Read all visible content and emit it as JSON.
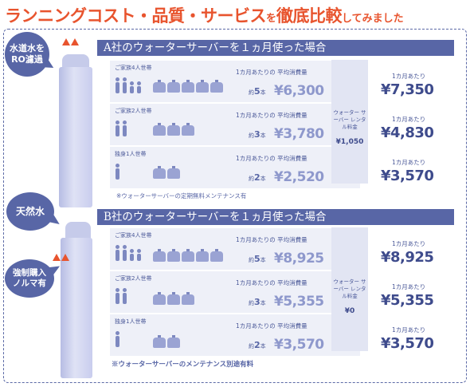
{
  "title": {
    "main": "ランニングコスト・品質・サービス",
    "particle": "を",
    "main2": "徹底比較",
    "tail": "してみました"
  },
  "bubbles": {
    "a": "水道水を RO濾過",
    "b": "天然水",
    "c": "強制購入 ノルマ有"
  },
  "panel_a": {
    "header": "A社のウォーターサーバーを１ヵ月使った場合",
    "fee_label": "ウォーター サーバー レンタル料金",
    "fee_amount": "¥1,050",
    "rows": [
      {
        "household": "ご家族4人世帯",
        "consumption": "1カ月あたりの 平均消費量",
        "count_prefix": "約",
        "count": "5",
        "count_suffix": "本",
        "price": "¥6,300",
        "monthly_label": "1カ月あたり",
        "total": "¥7,350"
      },
      {
        "household": "ご家族2人世帯",
        "consumption": "1カ月あたりの 平均消費量",
        "count_prefix": "約",
        "count": "3",
        "count_suffix": "本",
        "price": "¥3,780",
        "monthly_label": "1カ月あたり",
        "total": "¥4,830"
      },
      {
        "household": "独身1人世帯",
        "consumption": "1カ月あたりの 平均消費量",
        "count_prefix": "約",
        "count": "2",
        "count_suffix": "本",
        "price": "¥2,520",
        "monthly_label": "1カ月あたり",
        "total": "¥3,570"
      }
    ],
    "note": "※ウォーターサーバーの定期無料メンテナンス有"
  },
  "panel_b": {
    "header": "B社のウォーターサーバーを１ヵ月使った場合",
    "fee_label": "ウォーター サーバー レンタル料金",
    "fee_amount": "¥0",
    "rows": [
      {
        "household": "ご家族4人世帯",
        "consumption": "1カ月あたりの 平均消費量",
        "count_prefix": "約",
        "count": "5",
        "count_suffix": "本",
        "price": "¥8,925",
        "monthly_label": "1カ月あたり",
        "total": "¥8,925"
      },
      {
        "household": "ご家族2人世帯",
        "consumption": "1カ月あたりの 平均消費量",
        "count_prefix": "約",
        "count": "3",
        "count_suffix": "本",
        "price": "¥5,355",
        "monthly_label": "1カ月あたり",
        "total": "¥5,355"
      },
      {
        "household": "独身1人世帯",
        "consumption": "1カ月あたりの 平均消費量",
        "count_prefix": "約",
        "count": "2",
        "count_suffix": "本",
        "price": "¥3,570",
        "monthly_label": "1カ月あたり",
        "total": "¥3,570"
      }
    ],
    "note": "※ウォーターサーバーのメンテナンス別途有料"
  },
  "colors": {
    "accent": "#e8542e",
    "brand": "#5866a6",
    "light": "#eef0f8"
  }
}
